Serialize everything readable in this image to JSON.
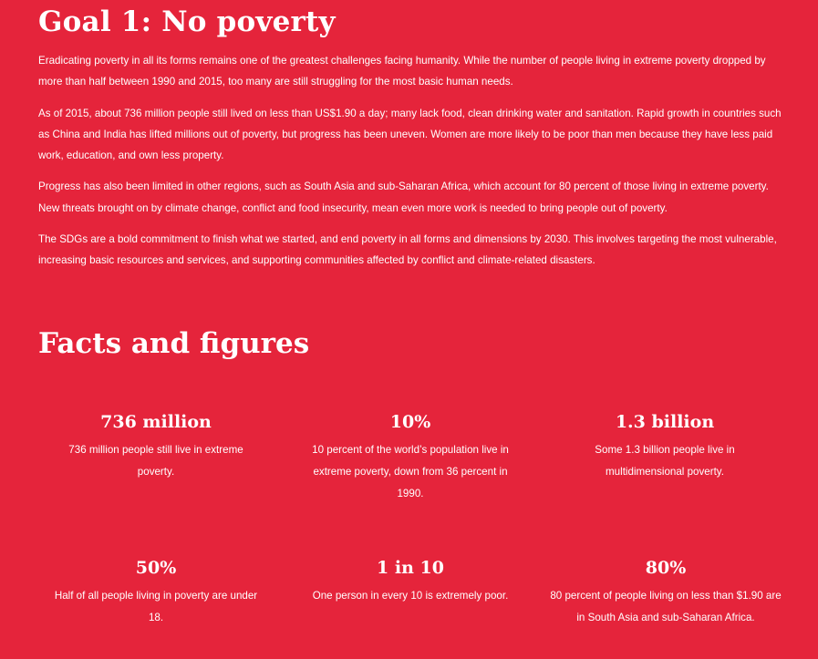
{
  "goal_title": "Goal 1: No poverty",
  "intro_paragraphs": [
    "Eradicating poverty in all its forms remains one of the greatest challenges facing humanity. While the number of people living in extreme poverty dropped by more than half between 1990 and 2015, too many are still struggling for the most basic human needs.",
    "As of 2015, about 736 million people still lived on less than US$1.90 a day; many lack food, clean drinking water and sanitation. Rapid growth in countries such as China and India has lifted millions out of poverty, but progress has been uneven. Women are more likely to be poor than men because they have less paid work, education, and own less property.",
    "Progress has also been limited in other regions, such as South Asia and sub-Saharan Africa, which account for 80 percent of those living in extreme poverty. New threats brought on by climate change, conflict and food insecurity, mean even more work is needed to bring people out of poverty.",
    "The SDGs are a bold commitment to finish what we started, and end poverty in all forms and dimensions by 2030. This involves targeting the most vulnerable, increasing basic resources and services, and supporting communities affected by conflict and climate-related disasters."
  ],
  "facts_title": "Facts and figures",
  "facts": [
    {
      "figure": "736 million",
      "description": "736 million people still live in extreme poverty."
    },
    {
      "figure": "10%",
      "description": "10 percent of the world’s population live in extreme poverty, down from 36 percent in 1990."
    },
    {
      "figure": "1.3 billion",
      "description": "Some 1.3 billion people live in multidimensional poverty."
    },
    {
      "figure": "50%",
      "description": "Half of all people living in poverty are under 18."
    },
    {
      "figure": "1 in 10",
      "description": "One person in every 10 is extremely poor."
    },
    {
      "figure": "80%",
      "description": "80 percent of people living on less than $1.90 are in South Asia and sub-Saharan Africa."
    }
  ],
  "colors": {
    "background": "#E5243B",
    "text": "#FFFFFF"
  }
}
